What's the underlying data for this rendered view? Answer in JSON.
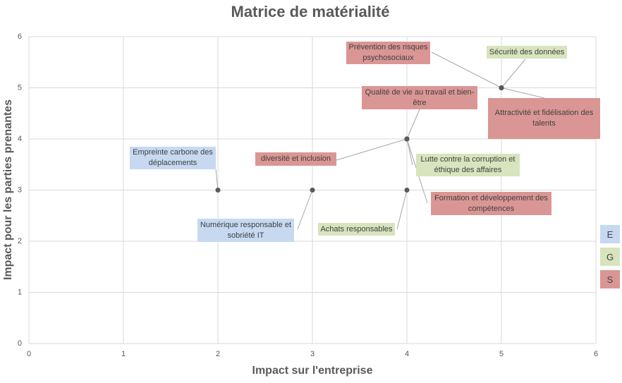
{
  "chart_data": {
    "type": "scatter",
    "title": "Matrice de matérialité",
    "xlabel": "Impact sur l'entreprise",
    "ylabel": "Impact pour les parties prenantes",
    "xlim": [
      0,
      6
    ],
    "ylim": [
      0,
      6
    ],
    "xticks": [
      0,
      1,
      2,
      3,
      4,
      5,
      6
    ],
    "yticks": [
      0,
      1,
      2,
      3,
      4,
      5,
      6
    ],
    "grid": true,
    "marker_color": "#595959",
    "series": [
      {
        "name": "E",
        "color": "#c6d9f1",
        "x": [
          2,
          3
        ],
        "y": [
          3,
          3
        ],
        "labels": [
          "Empreinte carbone des déplacements",
          "Numérique responsable et sobriété IT"
        ]
      },
      {
        "name": "G",
        "color": "#d7e4bd",
        "x": [
          4,
          4,
          5
        ],
        "y": [
          3,
          4,
          5
        ],
        "labels": [
          "Achats responsables",
          "Lutte contre la corruption et éthique des affaires",
          "Sécurité des données"
        ]
      },
      {
        "name": "S",
        "color": "#da9694",
        "x": [
          4,
          4,
          4,
          5,
          5
        ],
        "y": [
          4,
          4,
          4,
          5,
          5
        ],
        "labels": [
          "Qualité de vie au travail et bien-être",
          "diversité et inclusion",
          "Formation et développement des compétences",
          "Prévention des risques psychosociaux",
          "Attractivité et fidélisation des talents"
        ]
      }
    ]
  }
}
